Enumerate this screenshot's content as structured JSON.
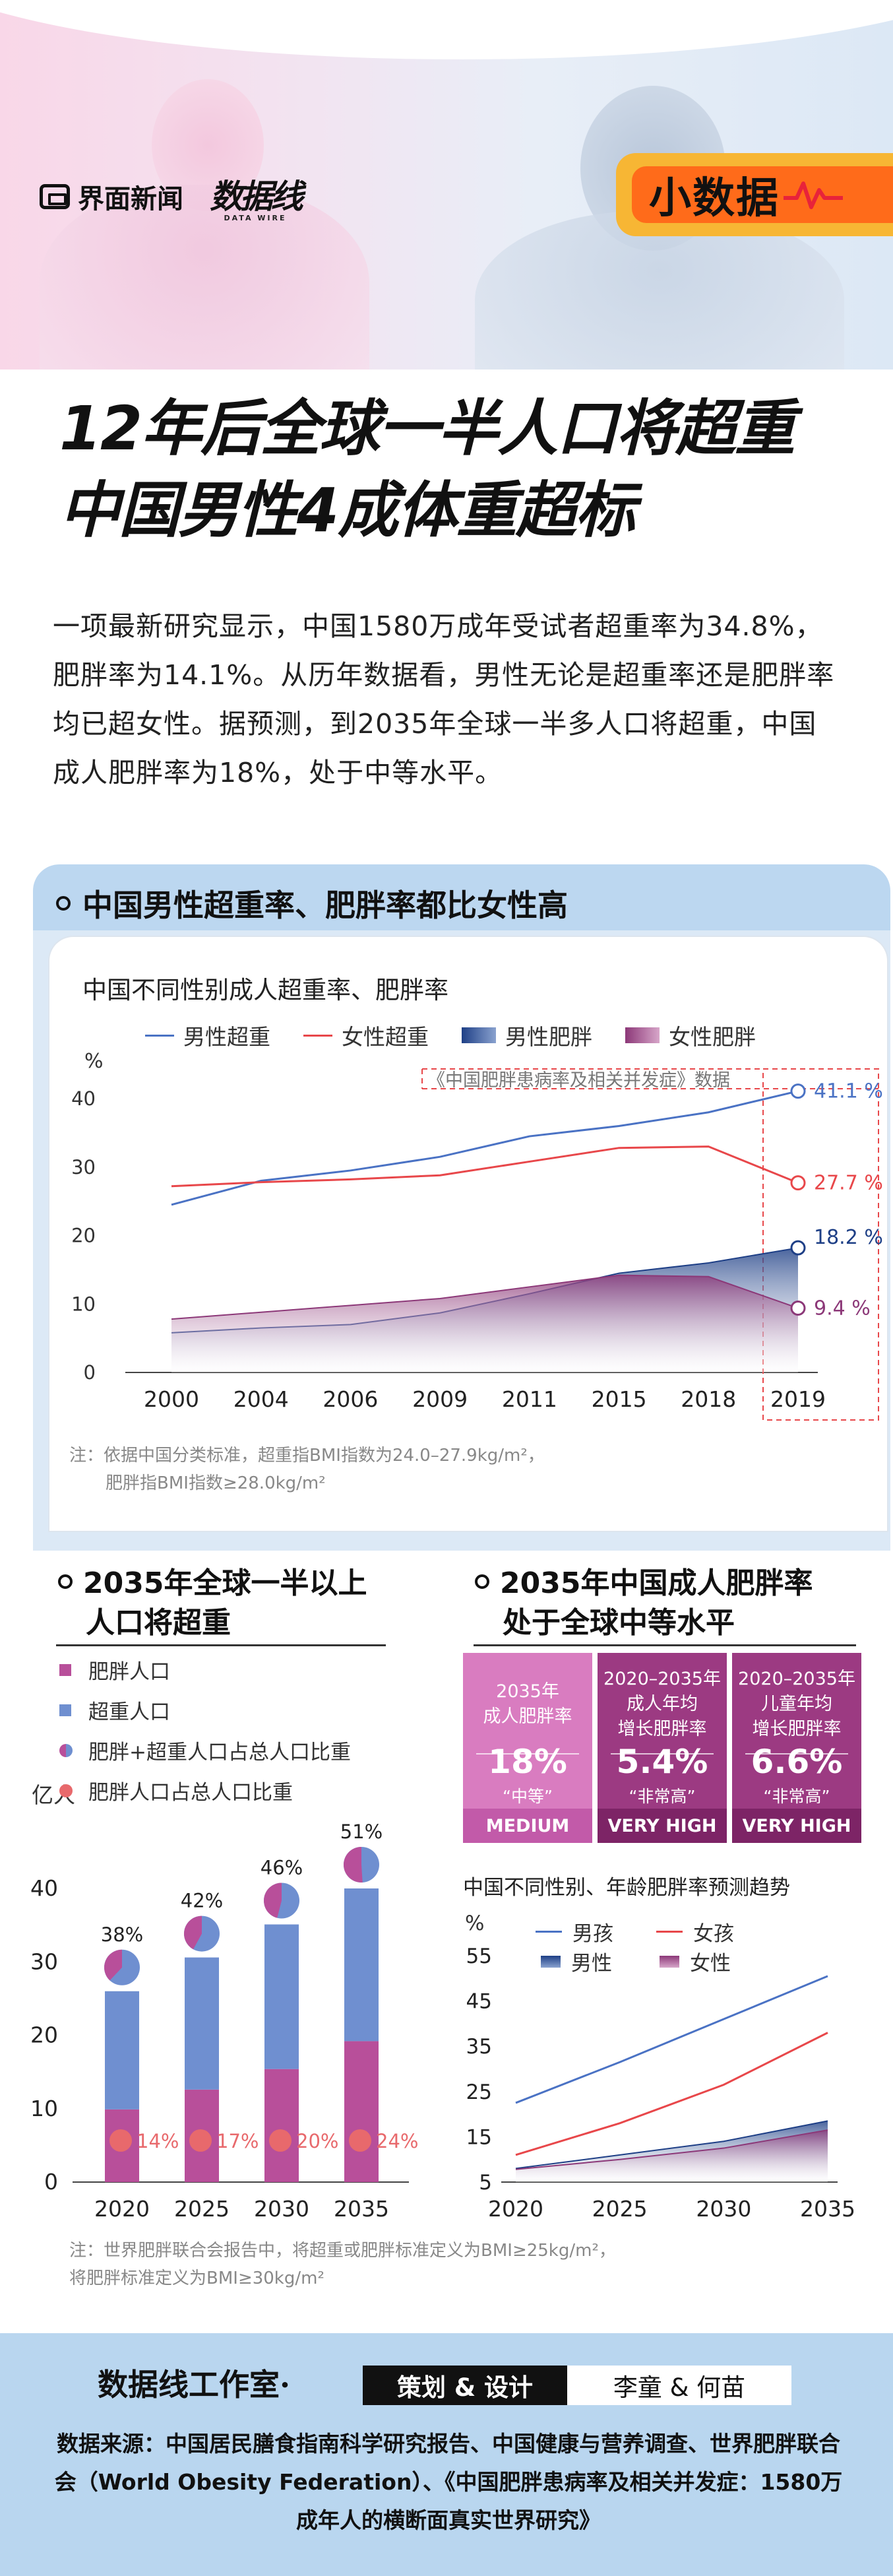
{
  "brand": {
    "jiemian": "界面新闻",
    "dataline": "数据线",
    "dataline_en": "DATA WIRE",
    "tag": "小数据"
  },
  "headline": {
    "line1": "12年后全球一半人口将超重",
    "line2": "中国男性4成体重超标"
  },
  "intro": "一项最新研究显示，中国1580万成年受试者超重率为34.8%，肥胖率为14.1%。从历年数据看，男性无论是超重率还是肥胖率均已超女性。据预测，到2035年全球一半多人口将超重，中国成人肥胖率为18%，处于中等水平。",
  "section1": {
    "title": "中国男性超重率、肥胖率都比女性高",
    "chart_title": "中国不同性别成人超重率、肥胖率",
    "legend": [
      "男性超重",
      "女性超重",
      "男性肥胖",
      "女性肥胖"
    ],
    "annotation": "《中国肥胖患病率及相关并发症》数据",
    "note_line1": "注：依据中国分类标准，超重指BMI指数为24.0–27.9kg/m²，",
    "note_line2": "肥胖指BMI指数≥28.0kg/m²"
  },
  "section2": {
    "title_line1": "2035年全球一半以上",
    "title_line2": "人口将超重",
    "legend": [
      "肥胖人口",
      "超重人口",
      "肥胖+超重人口占总人口比重",
      "肥胖人口占总人口比重"
    ],
    "unit": "亿人"
  },
  "section3": {
    "title_line1": "2035年中国成人肥胖率",
    "title_line2": "处于全球中等水平",
    "boxes": [
      {
        "title": "2035年\n成人肥胖率",
        "value": "18%",
        "level_cn": "“中等”",
        "level_en": "MEDIUM",
        "color": "#d97cc0",
        "foot": "#c25aa9"
      },
      {
        "title": "2020–2035年\n成人年均\n增长肥胖率",
        "value": "5.4%",
        "level_cn": "“非常高”",
        "level_en": "VERY HIGH",
        "color": "#9c3a82",
        "foot": "#7d2466"
      },
      {
        "title": "2020–2035年\n儿童年均\n增长肥胖率",
        "value": "6.6%",
        "level_cn": "“非常高”",
        "level_en": "VERY HIGH",
        "color": "#9c3a82",
        "foot": "#7d2466"
      }
    ],
    "chart_title": "中国不同性别、年龄肥胖率预测趋势",
    "legend": [
      "男孩",
      "女孩",
      "男性",
      "女性"
    ],
    "note_line1": "注：世界肥胖联合会报告中，将超重或肥胖标准定义为BMI≥25kg/m²，",
    "note_line2": "将肥胖标准定义为BMI≥30kg/m²"
  },
  "footer": {
    "studio": "数据线工作室·",
    "role": "策划 & 设计",
    "names": "李童 & 何苗",
    "sources": "数据来源：中国居民膳食指南科学研究报告、中国健康与营养调查、世界肥胖联合会（World Obesity Federation）、《中国肥胖患病率及相关并发症：1580万成年人的横断面真实世界研究》"
  },
  "colors": {
    "male_line": "#4a72c4",
    "female_line": "#e8474a",
    "male_area": "#1e3f86",
    "female_area": "#8c3878",
    "obese_bar": "#b84f9a",
    "overweight_bar": "#6f8fd0",
    "pct_dot": "#e8696c"
  },
  "chart_data": [
    {
      "type": "line",
      "title": "中国不同性别成人超重率、肥胖率",
      "ylabel": "%",
      "ylim": [
        0,
        40
      ],
      "yticks": [
        0,
        10,
        20,
        30,
        40
      ],
      "categories": [
        "2000",
        "2004",
        "2006",
        "2009",
        "2011",
        "2015",
        "2018",
        "2019"
      ],
      "series": [
        {
          "name": "男性超重",
          "kind": "line",
          "values": [
            24.5,
            28.0,
            29.5,
            31.5,
            34.5,
            36.0,
            38.0,
            41.1
          ]
        },
        {
          "name": "女性超重",
          "kind": "line",
          "values": [
            27.2,
            27.8,
            28.2,
            28.8,
            30.8,
            32.8,
            33.0,
            27.7
          ]
        },
        {
          "name": "男性肥胖",
          "kind": "area",
          "values": [
            5.8,
            6.5,
            7.0,
            8.7,
            11.5,
            14.5,
            16.0,
            18.2
          ]
        },
        {
          "name": "女性肥胖",
          "kind": "area",
          "values": [
            7.8,
            8.8,
            9.8,
            10.8,
            12.5,
            14.2,
            14.0,
            9.4
          ]
        }
      ],
      "labels_2019": [
        "41.1 %",
        "27.7 %",
        "18.2 %",
        "9.4 %"
      ]
    },
    {
      "type": "bar",
      "title": "2035年全球一半以上人口将超重",
      "ylabel": "亿人",
      "ylim": [
        0,
        40
      ],
      "yticks": [
        0,
        10,
        20,
        30,
        40
      ],
      "categories": [
        "2020",
        "2025",
        "2030",
        "2035"
      ],
      "series": [
        {
          "name": "肥胖人口",
          "values": [
            9.9,
            12.6,
            15.4,
            19.2
          ]
        },
        {
          "name": "超重人口",
          "values": [
            16.1,
            18.0,
            19.7,
            20.8
          ]
        }
      ],
      "share_total": [
        "38%",
        "42%",
        "46%",
        "51%"
      ],
      "share_total_values": [
        38,
        42,
        46,
        51
      ],
      "share_obese": [
        "14%",
        "17%",
        "20%",
        "24%"
      ]
    },
    {
      "type": "line",
      "title": "中国不同性别、年龄肥胖率预测趋势",
      "ylabel": "%",
      "ylim": [
        5,
        55
      ],
      "yticks": [
        5,
        15,
        25,
        35,
        45,
        55
      ],
      "categories": [
        "2020",
        "2025",
        "2030",
        "2035"
      ],
      "series": [
        {
          "name": "男孩",
          "kind": "line",
          "values": [
            22.5,
            31.5,
            41.0,
            50.5
          ]
        },
        {
          "name": "女孩",
          "kind": "line",
          "values": [
            11.0,
            18.0,
            26.5,
            38.0
          ]
        },
        {
          "name": "男性",
          "kind": "area",
          "values": [
            8.0,
            11.0,
            14.0,
            18.5
          ]
        },
        {
          "name": "女性",
          "kind": "area",
          "values": [
            7.8,
            10.0,
            12.5,
            16.5
          ]
        }
      ]
    }
  ]
}
